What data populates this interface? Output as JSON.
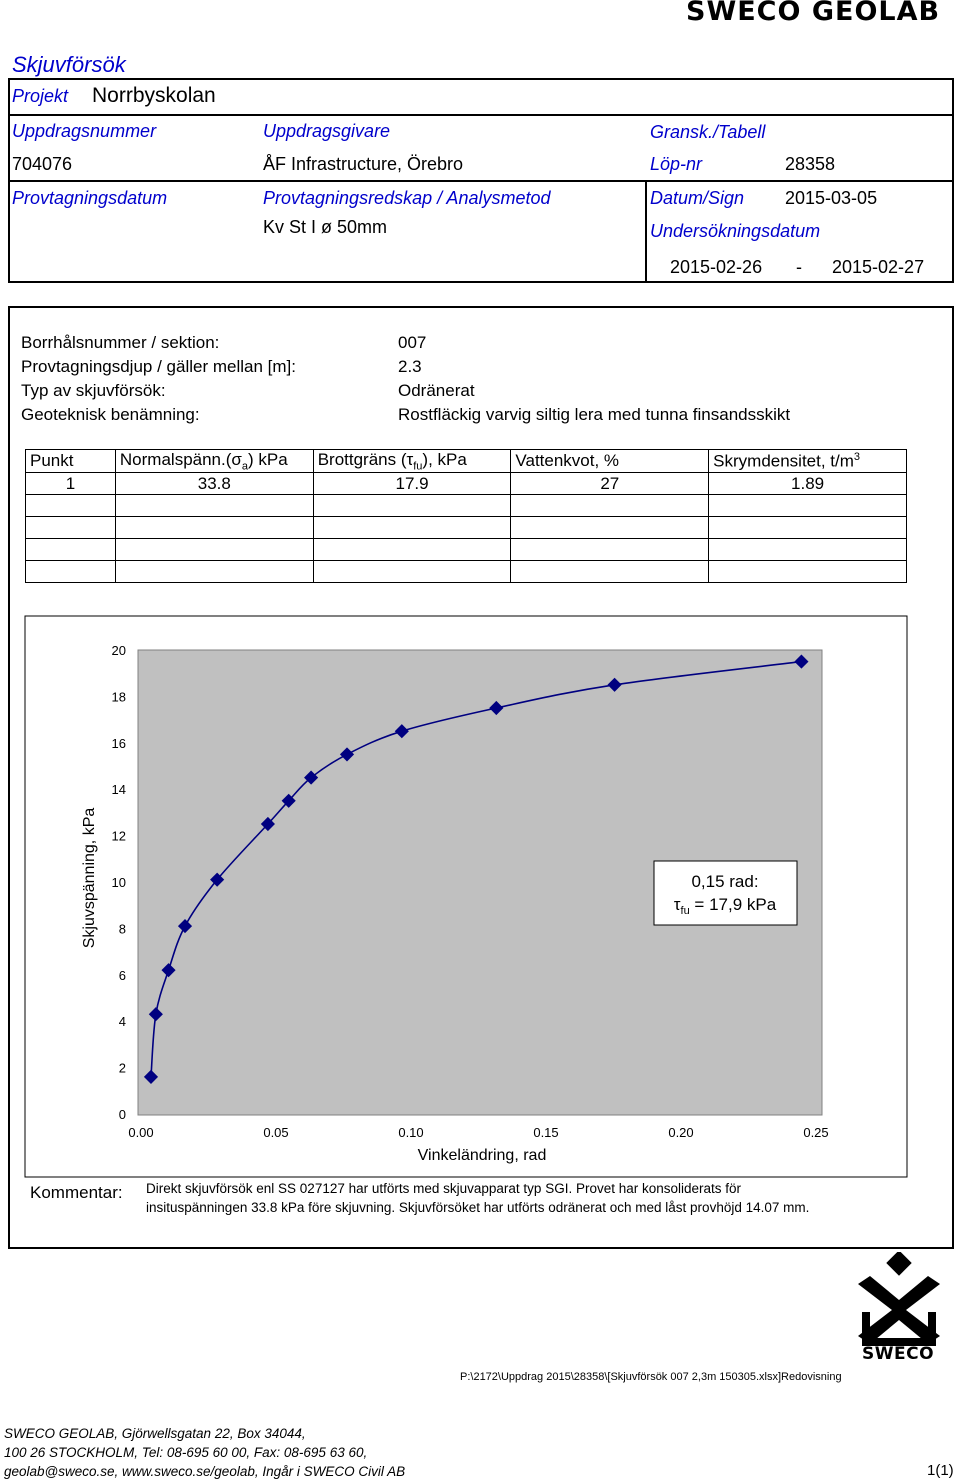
{
  "brand": "SWECO GEOLAB",
  "title": "Skjuvförsök",
  "project": {
    "label": "Projekt",
    "value": "Norrbyskolan"
  },
  "header": {
    "uppdragsnummer_label": "Uppdragsnummer",
    "uppdragsnummer": "704076",
    "uppdragsgivare_label": "Uppdragsgivare",
    "uppdragsgivare": "ÅF Infrastructure, Örebro",
    "gransk_label": "Gransk./Tabell",
    "lopnr_label": "Löp-nr",
    "lopnr": "28358",
    "provtagningsdatum_label": "Provtagningsdatum",
    "redskap_label": "Provtagningsredskap / Analysmetod",
    "redskap": "Kv St I ø 50mm",
    "datum_sign_label": "Datum/Sign",
    "datum_sign": "2015-03-05",
    "undersokningsdatum_label": "Undersökningsdatum",
    "unders_from": "2015-02-26",
    "unders_dash": "-",
    "unders_to": "2015-02-27"
  },
  "info": {
    "borrhal_label": "Borrhålsnummer / sektion:",
    "borrhal": "007",
    "djup_label": "Provtagningsdjup / gäller mellan [m]:",
    "djup": "2.3",
    "typ_label": "Typ av skjuvförsök:",
    "typ": "Odränerat",
    "benamning_label": "Geoteknisk benämning:",
    "benamning": "Rostfläckig varvig siltig lera med tunna finsandsskikt"
  },
  "table": {
    "h_punkt": "Punkt",
    "h_normal": "Normalspänn.(",
    "h_normal_sym": "σ",
    "h_normal_sub": "a",
    "h_normal_unit": ") kPa",
    "h_brott": "Brottgräns (",
    "h_brott_sym": "τ",
    "h_brott_sub": "fu",
    "h_brott_unit": "), kPa",
    "h_vatten": "Vattenkvot, %",
    "h_skrym": "Skrymdensitet, t/m",
    "h_skrym_sup": "3",
    "rows": [
      {
        "punkt": "1",
        "normal": "33.8",
        "brott": "17.9",
        "vatten": "27",
        "skrym": "1.89"
      }
    ]
  },
  "chart_data": {
    "type": "line",
    "xlabel": "Vinkeländring, rad",
    "ylabel": "Skjuvspänning, kPa",
    "xlim": [
      0,
      0.25
    ],
    "ylim": [
      0,
      20
    ],
    "xticks": [
      "0.00",
      "0.05",
      "0.10",
      "0.15",
      "0.20",
      "0.25"
    ],
    "yticks": [
      "0",
      "2",
      "4",
      "6",
      "8",
      "10",
      "12",
      "14",
      "16",
      "18",
      "20"
    ],
    "grid": false,
    "plot_bg": "#c0c0c0",
    "series_color": "#000080",
    "series": [
      {
        "x": [
          0.0037,
          0.0055,
          0.0102,
          0.0163,
          0.0282,
          0.047,
          0.0547,
          0.063,
          0.0763,
          0.0966,
          0.1316,
          0.1754,
          0.2446
        ],
        "y": [
          1.6,
          4.3,
          6.2,
          8.1,
          10.1,
          12.5,
          13.5,
          14.5,
          15.5,
          16.5,
          17.5,
          18.5,
          19.5
        ]
      }
    ],
    "annotation_line1": "0,15 rad:",
    "annotation_sym": "τ",
    "annotation_sub": "fu",
    "annotation_rest": " = 17,9 kPa"
  },
  "comment": {
    "label": "Kommentar:",
    "line1": "Direkt skjuvförsök enl SS 027127 har utförts med skjuvapparat typ SGI. Provet har konsoliderats för",
    "line2": "insituspänningen 33.8 kPa före skjuvning. Skjuvförsöket har utförts odränerat och med låst provhöjd 14.07 mm."
  },
  "logo_text": "SWECO",
  "filepath": "P:\\2172\\Uppdrag 2015\\28358\\[Skjuvförsök 007 2,3m 150305.xlsx]Redovisning",
  "footer": {
    "line1": "SWECO GEOLAB, Gjörwellsgatan 22, Box 34044,",
    "line2": "100 26  STOCKHOLM, Tel: 08-695 60 00, Fax: 08-695 63 60,",
    "line3": "geolab@sweco.se, www.sweco.se/geolab, Ingår i SWECO Civil AB",
    "page": "1(1)"
  }
}
